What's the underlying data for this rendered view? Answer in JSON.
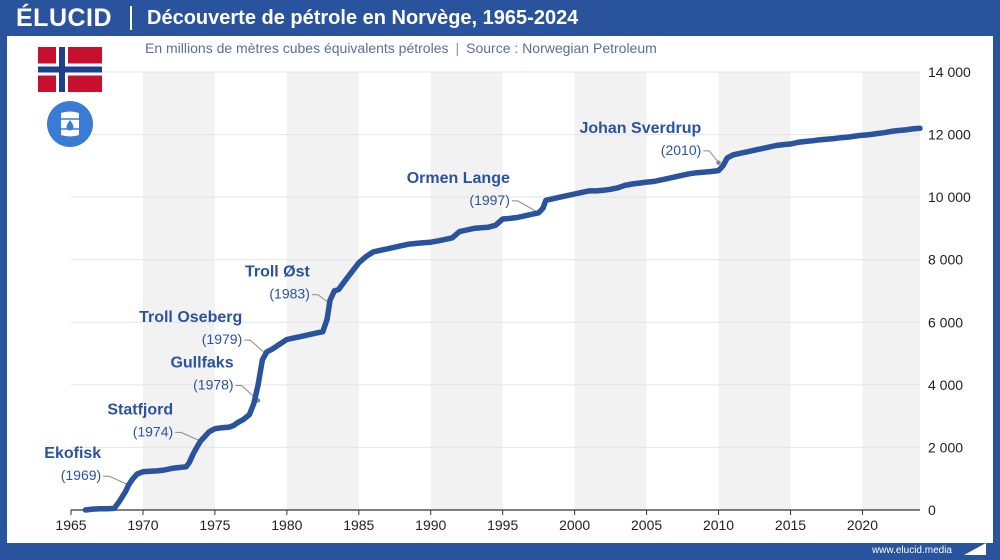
{
  "brand": {
    "logo_text": "ÉLUCID",
    "footer_url": "www.elucid.media"
  },
  "header": {
    "title": "Découverte de pétrole en Norvège, 1965-2024"
  },
  "subtitle": {
    "units": "En millions de mètres cubes équivalents pétroles",
    "separator": "|",
    "source": "Source : Norwegian Petroleum"
  },
  "icons": {
    "flag": "norway-flag-icon",
    "barrel": "oil-barrel-icon"
  },
  "colors": {
    "brand": "#2a539e",
    "line": "#2a539e",
    "band": "#f2f2f2",
    "grid": "#e4e4e4"
  },
  "chart_data": {
    "type": "line",
    "title": "Découverte de pétrole en Norvège, 1965-2024",
    "subtitle": "En millions de mètres cubes équivalents pétroles",
    "xlabel": "",
    "ylabel": "",
    "xlim": [
      1965,
      2024
    ],
    "ylim": [
      0,
      14000
    ],
    "x_ticks": [
      1965,
      1970,
      1975,
      1980,
      1985,
      1990,
      1995,
      2000,
      2005,
      2010,
      2015,
      2020
    ],
    "y_ticks": [
      0,
      2000,
      4000,
      6000,
      8000,
      10000,
      12000,
      14000
    ],
    "y_tick_labels": [
      "0",
      "2 000",
      "4 000",
      "6 000",
      "8 000",
      "10 000",
      "12 000",
      "14 000"
    ],
    "y_axis_position": "right",
    "shaded_bands": [
      [
        1970,
        1975
      ],
      [
        1980,
        1985
      ],
      [
        1990,
        1995
      ],
      [
        2000,
        2005
      ],
      [
        2010,
        2015
      ],
      [
        2020,
        2024
      ]
    ],
    "grid": "horizontal",
    "series": [
      {
        "x": [
          1966,
          1966.5,
          1967,
          1967.5,
          1968,
          1968.4,
          1968.8,
          1969,
          1969.3,
          1969.6,
          1970,
          1970.5,
          1971,
          1971.5,
          1972,
          1972.5,
          1973,
          1973.2,
          1973.5,
          1973.8,
          1974,
          1974.3,
          1974.6,
          1975,
          1975.5,
          1976,
          1976.3,
          1976.6,
          1977,
          1977.4,
          1977.7,
          1978,
          1978.3,
          1978.6,
          1979,
          1979.5,
          1980,
          1980.5,
          1981,
          1981.5,
          1982,
          1982.5,
          1982.8,
          1983,
          1983.3,
          1983.6,
          1984,
          1984.5,
          1985,
          1985.5,
          1986,
          1986.5,
          1987,
          1987.5,
          1988,
          1988.5,
          1989,
          1989.5,
          1990,
          1990.5,
          1991,
          1991.5,
          1992,
          1992.5,
          1993,
          1993.5,
          1994,
          1994.5,
          1995,
          1995.5,
          1996,
          1996.5,
          1997,
          1997.5,
          1997.8,
          1998,
          1998.5,
          1999,
          1999.5,
          2000,
          2000.5,
          2001,
          2001.5,
          2002,
          2002.5,
          2003,
          2003.5,
          2004,
          2004.5,
          2005,
          2005.5,
          2006,
          2006.5,
          2007,
          2007.5,
          2008,
          2008.5,
          2009,
          2009.5,
          2010,
          2010.3,
          2010.6,
          2011,
          2011.5,
          2012,
          2012.5,
          2013,
          2013.5,
          2014,
          2014.5,
          2015,
          2015.5,
          2016,
          2016.5,
          2017,
          2017.5,
          2018,
          2018.5,
          2019,
          2019.5,
          2020,
          2020.5,
          2021,
          2021.5,
          2022,
          2022.5,
          2023,
          2023.5,
          2024
        ],
        "y": [
          0,
          30,
          40,
          40,
          50,
          300,
          600,
          800,
          1000,
          1150,
          1220,
          1240,
          1250,
          1280,
          1330,
          1360,
          1380,
          1500,
          1800,
          2050,
          2200,
          2350,
          2500,
          2600,
          2630,
          2650,
          2700,
          2800,
          2900,
          3050,
          3400,
          4000,
          4800,
          5050,
          5150,
          5300,
          5450,
          5500,
          5550,
          5600,
          5650,
          5700,
          6100,
          6700,
          7000,
          7050,
          7300,
          7600,
          7900,
          8100,
          8250,
          8300,
          8350,
          8400,
          8450,
          8500,
          8520,
          8540,
          8560,
          8600,
          8650,
          8700,
          8900,
          8950,
          9000,
          9020,
          9040,
          9100,
          9300,
          9320,
          9350,
          9400,
          9450,
          9500,
          9650,
          9900,
          9950,
          10000,
          10050,
          10100,
          10150,
          10200,
          10200,
          10220,
          10250,
          10300,
          10380,
          10420,
          10450,
          10480,
          10500,
          10550,
          10600,
          10650,
          10700,
          10750,
          10780,
          10800,
          10820,
          10850,
          11000,
          11250,
          11350,
          11400,
          11450,
          11500,
          11550,
          11600,
          11650,
          11680,
          11700,
          11750,
          11780,
          11800,
          11830,
          11850,
          11870,
          11900,
          11920,
          11950,
          11980,
          12000,
          12030,
          12060,
          12100,
          12130,
          12150,
          12180,
          12200
        ]
      }
    ],
    "annotations": [
      {
        "name": "Ekofisk",
        "year_label": "(1969)",
        "x": 1969,
        "y": 800,
        "label_year": 1967.1,
        "label_value": 1400
      },
      {
        "name": "Statfjord",
        "year_label": "(1974)",
        "x": 1974,
        "y": 2200,
        "label_year": 1972.1,
        "label_value": 2800
      },
      {
        "name": "Gullfaks",
        "year_label": "(1978)",
        "x": 1978,
        "y": 3500,
        "label_year": 1976.3,
        "label_value": 4300
      },
      {
        "name": "Troll Oseberg",
        "year_label": "(1979)",
        "x": 1978.5,
        "y": 5000,
        "label_year": 1976.9,
        "label_value": 5750
      },
      {
        "name": "Troll Øst",
        "year_label": "(1983)",
        "x": 1983,
        "y": 6600,
        "label_year": 1981.6,
        "label_value": 7200
      },
      {
        "name": "Ormen Lange",
        "year_label": "(1997)",
        "x": 1997.5,
        "y": 9500,
        "label_year": 1995.5,
        "label_value": 10200
      },
      {
        "name": "Johan Sverdrup",
        "year_label": "(2010)",
        "x": 2010,
        "y": 11100,
        "label_year": 2008.8,
        "label_value": 11800
      }
    ]
  }
}
